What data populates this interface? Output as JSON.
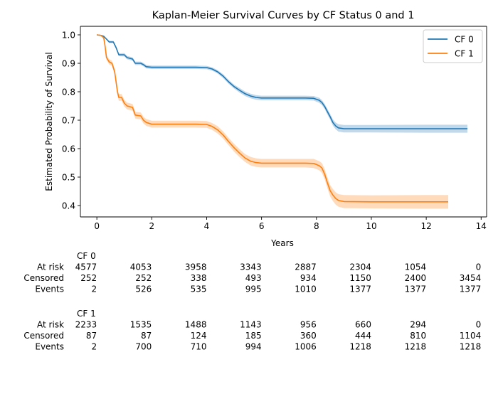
{
  "chart_data": {
    "type": "line",
    "title": "Kaplan-Meier Survival Curves by CF Status 0 and 1",
    "xlabel": "Years",
    "ylabel": "Estimated Probability of Survival",
    "xlim": [
      -0.6,
      14.2
    ],
    "ylim": [
      0.36,
      1.03
    ],
    "x_ticks": [
      0,
      2,
      4,
      6,
      8,
      10,
      12,
      14
    ],
    "y_ticks": [
      0.4,
      0.5,
      0.6,
      0.7,
      0.8,
      0.9,
      1.0
    ],
    "x_tick_labels": [
      "0",
      "2",
      "4",
      "6",
      "8",
      "10",
      "12",
      "14"
    ],
    "y_tick_labels": [
      "0.4",
      "0.5",
      "0.6",
      "0.7",
      "0.8",
      "0.9",
      "1.0"
    ],
    "grid": false,
    "legend_position": "top-right",
    "series": [
      {
        "name": "CF 0",
        "color": "#1f77b4",
        "band_color": "#1f77b4",
        "x": [
          0,
          0.15,
          0.25,
          0.35,
          0.45,
          0.6,
          0.7,
          0.8,
          1.0,
          1.1,
          1.3,
          1.4,
          1.6,
          1.7,
          1.8,
          2.0,
          3.0,
          3.6,
          4.0,
          4.2,
          4.4,
          4.6,
          4.8,
          5.0,
          5.2,
          5.4,
          5.6,
          5.8,
          6.0,
          7.0,
          7.6,
          7.9,
          8.1,
          8.2,
          8.3,
          8.4,
          8.5,
          8.6,
          8.7,
          8.8,
          9.0,
          10.0,
          12.0,
          13.5
        ],
        "y": [
          1.0,
          0.998,
          0.995,
          0.985,
          0.975,
          0.975,
          0.955,
          0.93,
          0.93,
          0.92,
          0.915,
          0.9,
          0.9,
          0.895,
          0.888,
          0.886,
          0.886,
          0.886,
          0.885,
          0.88,
          0.87,
          0.855,
          0.835,
          0.818,
          0.805,
          0.793,
          0.785,
          0.78,
          0.778,
          0.778,
          0.778,
          0.777,
          0.77,
          0.762,
          0.748,
          0.73,
          0.712,
          0.692,
          0.68,
          0.673,
          0.67,
          0.67,
          0.67,
          0.67
        ],
        "ci_halfwidth": [
          0.0,
          0.001,
          0.002,
          0.003,
          0.004,
          0.004,
          0.005,
          0.005,
          0.006,
          0.006,
          0.006,
          0.006,
          0.006,
          0.006,
          0.006,
          0.006,
          0.006,
          0.006,
          0.006,
          0.006,
          0.006,
          0.007,
          0.007,
          0.007,
          0.008,
          0.008,
          0.008,
          0.008,
          0.008,
          0.008,
          0.008,
          0.008,
          0.009,
          0.009,
          0.009,
          0.01,
          0.01,
          0.011,
          0.012,
          0.013,
          0.013,
          0.013,
          0.014,
          0.014
        ]
      },
      {
        "name": "CF 1",
        "color": "#ff7f0e",
        "band_color": "#ff7f0e",
        "x": [
          0,
          0.15,
          0.25,
          0.3,
          0.35,
          0.45,
          0.55,
          0.65,
          0.75,
          0.8,
          0.9,
          1.0,
          1.1,
          1.3,
          1.4,
          1.6,
          1.7,
          1.8,
          2.0,
          3.0,
          3.6,
          4.0,
          4.2,
          4.4,
          4.6,
          4.8,
          5.0,
          5.2,
          5.4,
          5.6,
          5.8,
          6.0,
          7.0,
          7.6,
          7.9,
          8.1,
          8.2,
          8.3,
          8.4,
          8.5,
          8.6,
          8.7,
          8.8,
          9.0,
          10.0,
          12.0,
          12.8
        ],
        "y": [
          1.0,
          0.998,
          0.99,
          0.96,
          0.92,
          0.905,
          0.9,
          0.87,
          0.8,
          0.78,
          0.78,
          0.76,
          0.75,
          0.745,
          0.718,
          0.715,
          0.7,
          0.692,
          0.686,
          0.686,
          0.686,
          0.685,
          0.678,
          0.666,
          0.648,
          0.625,
          0.603,
          0.584,
          0.567,
          0.556,
          0.551,
          0.549,
          0.549,
          0.549,
          0.548,
          0.54,
          0.532,
          0.51,
          0.48,
          0.452,
          0.437,
          0.425,
          0.418,
          0.414,
          0.413,
          0.413,
          0.413
        ],
        "ci_halfwidth": [
          0.0,
          0.002,
          0.004,
          0.006,
          0.008,
          0.009,
          0.009,
          0.01,
          0.011,
          0.012,
          0.012,
          0.012,
          0.012,
          0.012,
          0.012,
          0.012,
          0.012,
          0.012,
          0.012,
          0.012,
          0.012,
          0.012,
          0.012,
          0.013,
          0.013,
          0.013,
          0.014,
          0.014,
          0.014,
          0.015,
          0.015,
          0.015,
          0.015,
          0.015,
          0.016,
          0.016,
          0.017,
          0.018,
          0.019,
          0.02,
          0.021,
          0.022,
          0.022,
          0.023,
          0.023,
          0.024,
          0.024
        ]
      }
    ],
    "risk_table": {
      "times": [
        0,
        2,
        4,
        6,
        8,
        10,
        12,
        14
      ],
      "groups": [
        {
          "name": "CF 0",
          "rows": [
            {
              "label": "At risk",
              "values": [
                "4577",
                "4053",
                "3958",
                "3343",
                "2887",
                "2304",
                "1054",
                "0"
              ]
            },
            {
              "label": "Censored",
              "values": [
                "252",
                "252",
                "338",
                "493",
                "934",
                "1150",
                "2400",
                "3454"
              ]
            },
            {
              "label": "Events",
              "values": [
                "2",
                "526",
                "535",
                "995",
                "1010",
                "1377",
                "1377",
                "1377"
              ]
            }
          ]
        },
        {
          "name": "CF 1",
          "rows": [
            {
              "label": "At risk",
              "values": [
                "2233",
                "1535",
                "1488",
                "1143",
                "956",
                "660",
                "294",
                "0"
              ]
            },
            {
              "label": "Censored",
              "values": [
                "87",
                "87",
                "124",
                "185",
                "360",
                "444",
                "810",
                "1104"
              ]
            },
            {
              "label": "Events",
              "values": [
                "2",
                "700",
                "710",
                "994",
                "1006",
                "1218",
                "1218",
                "1218"
              ]
            }
          ]
        }
      ]
    }
  }
}
